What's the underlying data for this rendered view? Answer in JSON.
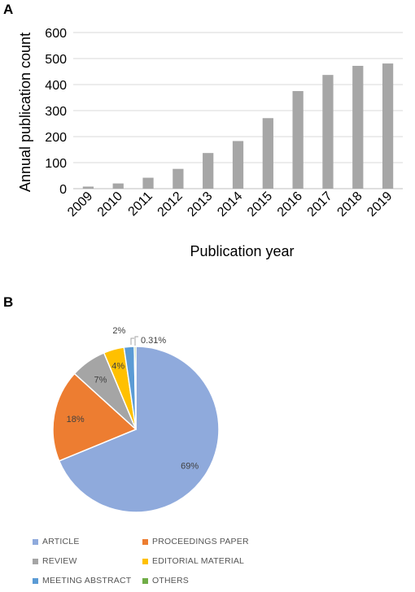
{
  "panels": {
    "a_label": "A",
    "b_label": "B"
  },
  "chart_data": [
    {
      "type": "bar",
      "title": "",
      "xlabel": "Publication year",
      "ylabel": "Annual publication count",
      "categories": [
        "2009",
        "2010",
        "2011",
        "2012",
        "2013",
        "2014",
        "2015",
        "2016",
        "2017",
        "2018",
        "2019"
      ],
      "values": [
        8,
        20,
        42,
        76,
        137,
        183,
        271,
        375,
        437,
        472,
        481
      ],
      "ylim": [
        0,
        600
      ],
      "yticks": [
        0,
        100,
        200,
        300,
        400,
        500,
        600
      ],
      "grid": true,
      "bar_color": "#a6a6a6"
    },
    {
      "type": "pie",
      "title": "",
      "categories": [
        "ARTICLE",
        "PROCEEDINGS PAPER",
        "REVIEW",
        "EDITORIAL MATERIAL",
        "MEETING ABSTRACT",
        "OTHERS"
      ],
      "values": [
        69,
        18,
        7,
        4,
        2,
        0.31
      ],
      "labels": [
        "69%",
        "18%",
        "7%",
        "4%",
        "2%",
        "0.31%"
      ],
      "colors": [
        "#8faadc",
        "#ed7d31",
        "#a5a5a5",
        "#ffc000",
        "#5b9bd5",
        "#70ad47"
      ],
      "legend": "bottom"
    }
  ]
}
